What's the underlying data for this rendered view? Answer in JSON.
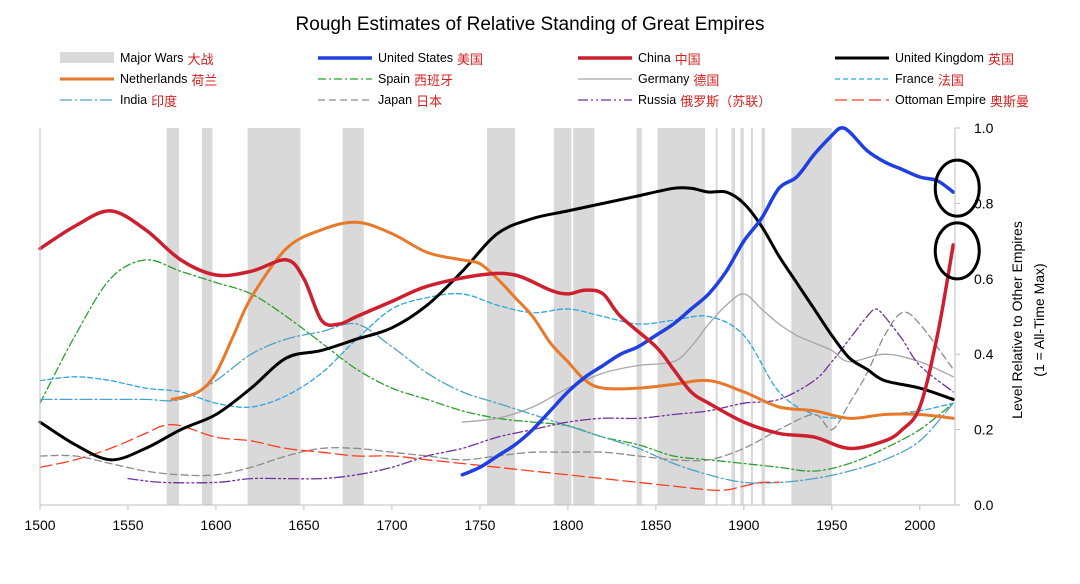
{
  "chart_data": {
    "type": "line",
    "title": "Rough Estimates of Relative Standing of Great Empires",
    "ylabel": "Level Relative to Other Empires",
    "ylabel_note": "(1 = All-Time Max)",
    "xlim": [
      1500,
      2020
    ],
    "ylim": [
      0,
      1
    ],
    "x_ticks": [
      "1500",
      "1550",
      "1600",
      "1650",
      "1700",
      "1750",
      "1800",
      "1850",
      "1900",
      "1950",
      "2000"
    ],
    "y_ticks": [
      "0.0",
      "0.2",
      "0.4",
      "0.6",
      "0.8",
      "1.0"
    ],
    "grid": false,
    "legend_position": "top",
    "wars_label": "Major Wars",
    "wars_label_cn": "大战",
    "wars_color": "#d9d9d9",
    "wars": [
      [
        1572,
        1579
      ],
      [
        1592,
        1598
      ],
      [
        1618,
        1648
      ],
      [
        1672,
        1684
      ],
      [
        1754,
        1770
      ],
      [
        1792,
        1802
      ],
      [
        1803,
        1815
      ],
      [
        1839,
        1842
      ],
      [
        1851,
        1878
      ],
      [
        1884,
        1885
      ],
      [
        1893,
        1895
      ],
      [
        1898,
        1900
      ],
      [
        1904,
        1905
      ],
      [
        1910,
        1912
      ],
      [
        1927,
        1950
      ]
    ],
    "series": [
      {
        "name": "United States",
        "name_cn": "美国",
        "color": "#1f3fe0",
        "dash": "solid",
        "width": 3.5,
        "x": [
          1740,
          1750,
          1760,
          1770,
          1780,
          1790,
          1800,
          1810,
          1820,
          1830,
          1840,
          1850,
          1860,
          1870,
          1880,
          1890,
          1900,
          1910,
          1920,
          1930,
          1940,
          1950,
          1955,
          1960,
          1970,
          1980,
          1990,
          2000,
          2010,
          2019
        ],
        "y": [
          0.08,
          0.1,
          0.13,
          0.16,
          0.2,
          0.25,
          0.3,
          0.34,
          0.37,
          0.4,
          0.42,
          0.45,
          0.48,
          0.52,
          0.56,
          0.62,
          0.7,
          0.76,
          0.84,
          0.87,
          0.93,
          0.98,
          1.0,
          0.99,
          0.94,
          0.91,
          0.89,
          0.87,
          0.86,
          0.83
        ]
      },
      {
        "name": "China",
        "name_cn": "中国",
        "color": "#cc1f2f",
        "dash": "solid",
        "width": 3.5,
        "x": [
          1500,
          1520,
          1540,
          1560,
          1580,
          1600,
          1620,
          1640,
          1650,
          1660,
          1670,
          1680,
          1700,
          1720,
          1750,
          1770,
          1790,
          1800,
          1810,
          1820,
          1830,
          1850,
          1860,
          1870,
          1880,
          1900,
          1920,
          1940,
          1960,
          1980,
          1990,
          2000,
          2010,
          2019
        ],
        "y": [
          0.68,
          0.74,
          0.78,
          0.73,
          0.65,
          0.61,
          0.62,
          0.65,
          0.6,
          0.49,
          0.48,
          0.5,
          0.54,
          0.58,
          0.61,
          0.61,
          0.57,
          0.56,
          0.57,
          0.56,
          0.5,
          0.42,
          0.36,
          0.3,
          0.27,
          0.22,
          0.19,
          0.18,
          0.15,
          0.17,
          0.2,
          0.26,
          0.45,
          0.69
        ]
      },
      {
        "name": "United Kingdom",
        "name_cn": "英国",
        "color": "#000000",
        "dash": "solid",
        "width": 3,
        "x": [
          1500,
          1520,
          1540,
          1560,
          1580,
          1600,
          1620,
          1640,
          1660,
          1680,
          1700,
          1720,
          1740,
          1760,
          1780,
          1800,
          1820,
          1840,
          1860,
          1870,
          1880,
          1890,
          1900,
          1910,
          1920,
          1930,
          1940,
          1950,
          1960,
          1970,
          1980,
          2000,
          2019
        ],
        "y": [
          0.22,
          0.16,
          0.12,
          0.15,
          0.2,
          0.24,
          0.31,
          0.39,
          0.41,
          0.44,
          0.47,
          0.53,
          0.62,
          0.72,
          0.76,
          0.78,
          0.8,
          0.82,
          0.84,
          0.84,
          0.83,
          0.83,
          0.8,
          0.74,
          0.66,
          0.59,
          0.52,
          0.45,
          0.39,
          0.36,
          0.33,
          0.31,
          0.28
        ]
      },
      {
        "name": "Netherlands",
        "name_cn": "荷兰",
        "color": "#e8792b",
        "dash": "solid",
        "width": 3,
        "x": [
          1575,
          1590,
          1600,
          1610,
          1620,
          1640,
          1660,
          1680,
          1700,
          1720,
          1740,
          1750,
          1760,
          1770,
          1780,
          1790,
          1800,
          1810,
          1820,
          1840,
          1860,
          1880,
          1900,
          1920,
          1940,
          1960,
          1980,
          2000,
          2019
        ],
        "y": [
          0.28,
          0.3,
          0.35,
          0.45,
          0.55,
          0.68,
          0.73,
          0.75,
          0.72,
          0.67,
          0.65,
          0.64,
          0.6,
          0.55,
          0.5,
          0.43,
          0.38,
          0.33,
          0.31,
          0.31,
          0.32,
          0.33,
          0.3,
          0.26,
          0.25,
          0.23,
          0.24,
          0.24,
          0.23
        ]
      },
      {
        "name": "Spain",
        "name_cn": "西班牙",
        "color": "#2ca02c",
        "dash": "8,3,2,3",
        "width": 1.3,
        "x": [
          1500,
          1520,
          1540,
          1560,
          1580,
          1600,
          1620,
          1640,
          1660,
          1680,
          1700,
          1720,
          1740,
          1760,
          1780,
          1800,
          1820,
          1840,
          1860,
          1880,
          1900,
          1920,
          1940,
          1960,
          1980,
          2000,
          2019
        ],
        "y": [
          0.27,
          0.45,
          0.6,
          0.65,
          0.62,
          0.59,
          0.56,
          0.5,
          0.43,
          0.36,
          0.31,
          0.28,
          0.25,
          0.23,
          0.22,
          0.21,
          0.18,
          0.16,
          0.13,
          0.12,
          0.11,
          0.1,
          0.09,
          0.11,
          0.15,
          0.2,
          0.27
        ]
      },
      {
        "name": "Germany",
        "name_cn": "德国",
        "color": "#a6a6a6",
        "dash": "solid",
        "width": 1.3,
        "x": [
          1740,
          1760,
          1780,
          1800,
          1820,
          1840,
          1860,
          1870,
          1880,
          1890,
          1900,
          1910,
          1920,
          1930,
          1940,
          1950,
          1960,
          1980,
          2000,
          2019
        ],
        "y": [
          0.22,
          0.23,
          0.26,
          0.31,
          0.35,
          0.37,
          0.38,
          0.42,
          0.48,
          0.53,
          0.56,
          0.52,
          0.48,
          0.45,
          0.43,
          0.41,
          0.38,
          0.4,
          0.38,
          0.34
        ]
      },
      {
        "name": "France",
        "name_cn": "法国",
        "color": "#2aa7e0",
        "dash": "5,3",
        "width": 1.3,
        "x": [
          1500,
          1520,
          1540,
          1560,
          1580,
          1600,
          1620,
          1640,
          1660,
          1680,
          1700,
          1720,
          1740,
          1760,
          1780,
          1800,
          1820,
          1840,
          1860,
          1880,
          1900,
          1920,
          1940,
          1960,
          1980,
          2000,
          2019
        ],
        "y": [
          0.33,
          0.34,
          0.33,
          0.31,
          0.3,
          0.27,
          0.26,
          0.29,
          0.35,
          0.44,
          0.52,
          0.55,
          0.56,
          0.53,
          0.51,
          0.52,
          0.5,
          0.48,
          0.49,
          0.5,
          0.45,
          0.3,
          0.24,
          0.23,
          0.24,
          0.25,
          0.27
        ]
      },
      {
        "name": "India",
        "name_cn": "印度",
        "color": "#4aa3c8",
        "dash": "12,3,2,3",
        "width": 1.3,
        "x": [
          1500,
          1520,
          1540,
          1560,
          1580,
          1600,
          1620,
          1640,
          1660,
          1680,
          1700,
          1720,
          1740,
          1760,
          1780,
          1800,
          1820,
          1840,
          1860,
          1880,
          1900,
          1920,
          1940,
          1960,
          1980,
          2000,
          2019
        ],
        "y": [
          0.28,
          0.28,
          0.28,
          0.28,
          0.28,
          0.33,
          0.4,
          0.44,
          0.46,
          0.48,
          0.42,
          0.35,
          0.3,
          0.27,
          0.24,
          0.21,
          0.18,
          0.15,
          0.11,
          0.08,
          0.06,
          0.06,
          0.07,
          0.09,
          0.12,
          0.17,
          0.27
        ]
      },
      {
        "name": "Japan",
        "name_cn": "日本",
        "color": "#8c8c8c",
        "dash": "7,4",
        "width": 1.3,
        "x": [
          1500,
          1520,
          1540,
          1560,
          1580,
          1600,
          1620,
          1640,
          1660,
          1680,
          1700,
          1720,
          1740,
          1760,
          1780,
          1800,
          1820,
          1840,
          1860,
          1880,
          1900,
          1920,
          1940,
          1950,
          1960,
          1970,
          1980,
          1990,
          2000,
          2019
        ],
        "y": [
          0.13,
          0.13,
          0.11,
          0.09,
          0.08,
          0.08,
          0.1,
          0.13,
          0.15,
          0.15,
          0.14,
          0.13,
          0.12,
          0.13,
          0.14,
          0.14,
          0.14,
          0.13,
          0.12,
          0.12,
          0.15,
          0.2,
          0.24,
          0.2,
          0.27,
          0.35,
          0.45,
          0.51,
          0.48,
          0.36
        ]
      },
      {
        "name": "Russia",
        "name_cn": "俄罗斯（苏联）",
        "color": "#7030a0",
        "dash": "10,3,2,3,2,3",
        "width": 1.3,
        "x": [
          1550,
          1570,
          1600,
          1620,
          1640,
          1660,
          1680,
          1700,
          1720,
          1740,
          1760,
          1780,
          1800,
          1820,
          1840,
          1860,
          1880,
          1900,
          1920,
          1940,
          1950,
          1960,
          1970,
          1975,
          1980,
          1990,
          2000,
          2019
        ],
        "y": [
          0.07,
          0.06,
          0.06,
          0.07,
          0.07,
          0.07,
          0.08,
          0.1,
          0.13,
          0.15,
          0.18,
          0.2,
          0.22,
          0.23,
          0.23,
          0.24,
          0.25,
          0.27,
          0.28,
          0.33,
          0.38,
          0.44,
          0.5,
          0.52,
          0.5,
          0.44,
          0.37,
          0.3
        ]
      },
      {
        "name": "Ottoman Empire",
        "name_cn": "奥斯曼",
        "color": "#ff3b1f",
        "dash": "12,5",
        "width": 1.3,
        "x": [
          1500,
          1520,
          1540,
          1560,
          1570,
          1580,
          1600,
          1620,
          1640,
          1660,
          1680,
          1700,
          1720,
          1740,
          1760,
          1780,
          1800,
          1820,
          1840,
          1860,
          1880,
          1890,
          1900,
          1910,
          1920
        ],
        "y": [
          0.1,
          0.12,
          0.15,
          0.19,
          0.21,
          0.21,
          0.18,
          0.17,
          0.15,
          0.14,
          0.13,
          0.13,
          0.12,
          0.11,
          0.1,
          0.09,
          0.08,
          0.07,
          0.06,
          0.05,
          0.04,
          0.04,
          0.05,
          0.06,
          0.06
        ]
      }
    ]
  }
}
